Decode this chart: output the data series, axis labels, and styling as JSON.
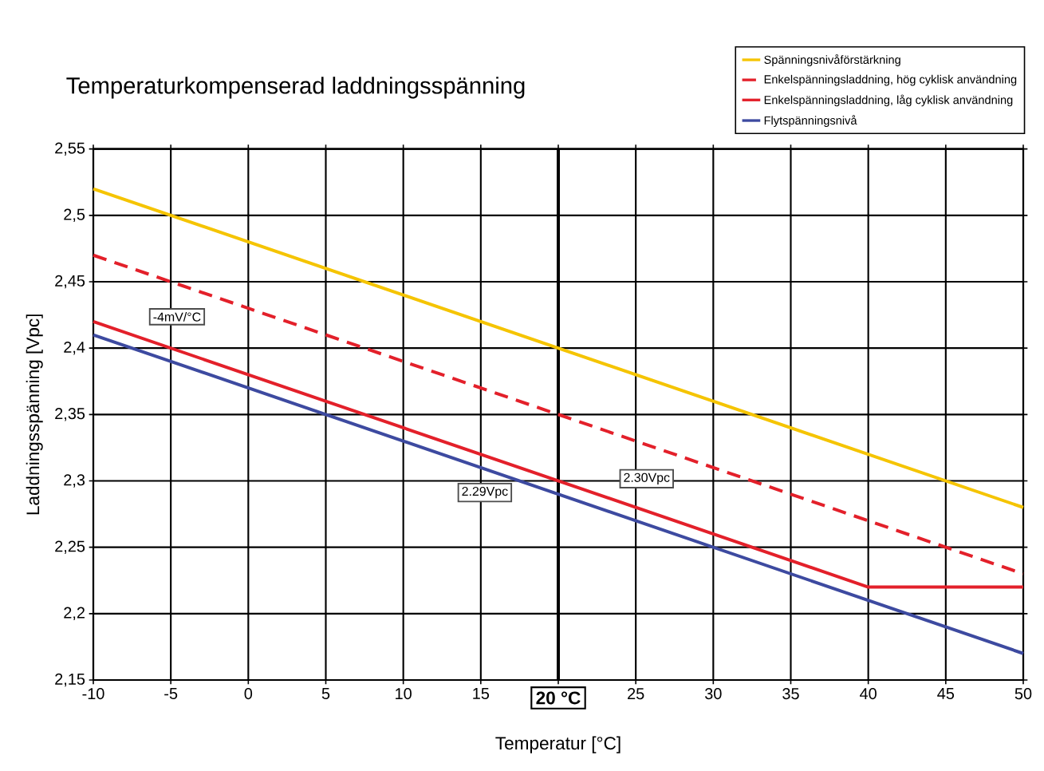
{
  "chart_data": {
    "type": "line",
    "title": "Temperaturkompenserad laddningsspänning",
    "xlabel": "Temperatur [°C]",
    "ylabel": "Laddningsspänning [Vpc]",
    "xlim": [
      -10,
      50
    ],
    "ylim": [
      2.15,
      2.55
    ],
    "xticks": [
      -10,
      -5,
      0,
      5,
      10,
      15,
      {
        "value": 20,
        "label": null
      },
      25,
      30,
      35,
      40,
      45,
      50
    ],
    "yticks": [
      {
        "value": 2.15,
        "label": "2,15"
      },
      {
        "value": 2.2,
        "label": "2,2"
      },
      {
        "value": 2.25,
        "label": "2,25"
      },
      {
        "value": 2.3,
        "label": "2,3"
      },
      {
        "value": 2.35,
        "label": "2,35"
      },
      {
        "value": 2.4,
        "label": "2,4"
      },
      {
        "value": 2.45,
        "label": "2,45"
      },
      {
        "value": 2.5,
        "label": "2,5"
      },
      {
        "value": 2.55,
        "label": "2,55"
      }
    ],
    "grid": true,
    "legend": "top right",
    "series": [
      {
        "name": "Spänningsnivåförstärkning",
        "color": "#f5c400",
        "x": [
          -10,
          50
        ],
        "values": [
          2.52,
          2.28
        ]
      },
      {
        "name": "Enkelspänningsladdning, hög cyklisk användning",
        "color": "#e3202a",
        "line_style": "dashed",
        "x": [
          -10,
          50
        ],
        "values": [
          2.47,
          2.23
        ]
      },
      {
        "name": "Enkelspänningsladdning, låg cyklisk användning",
        "color": "#e3202a",
        "x": [
          -10,
          40,
          50
        ],
        "values": [
          2.42,
          2.22,
          2.22
        ]
      },
      {
        "name": "Flytspänningsnivå",
        "color": "#3d4aa0",
        "x": [
          -10,
          50
        ],
        "values": [
          2.41,
          2.17
        ]
      }
    ],
    "ref_lines": [
      {
        "axis": "x",
        "value": 20,
        "label": "20 °C"
      }
    ],
    "annotations": [
      "-4mV/°C",
      "2.29Vpc",
      "2.30Vpc"
    ]
  }
}
